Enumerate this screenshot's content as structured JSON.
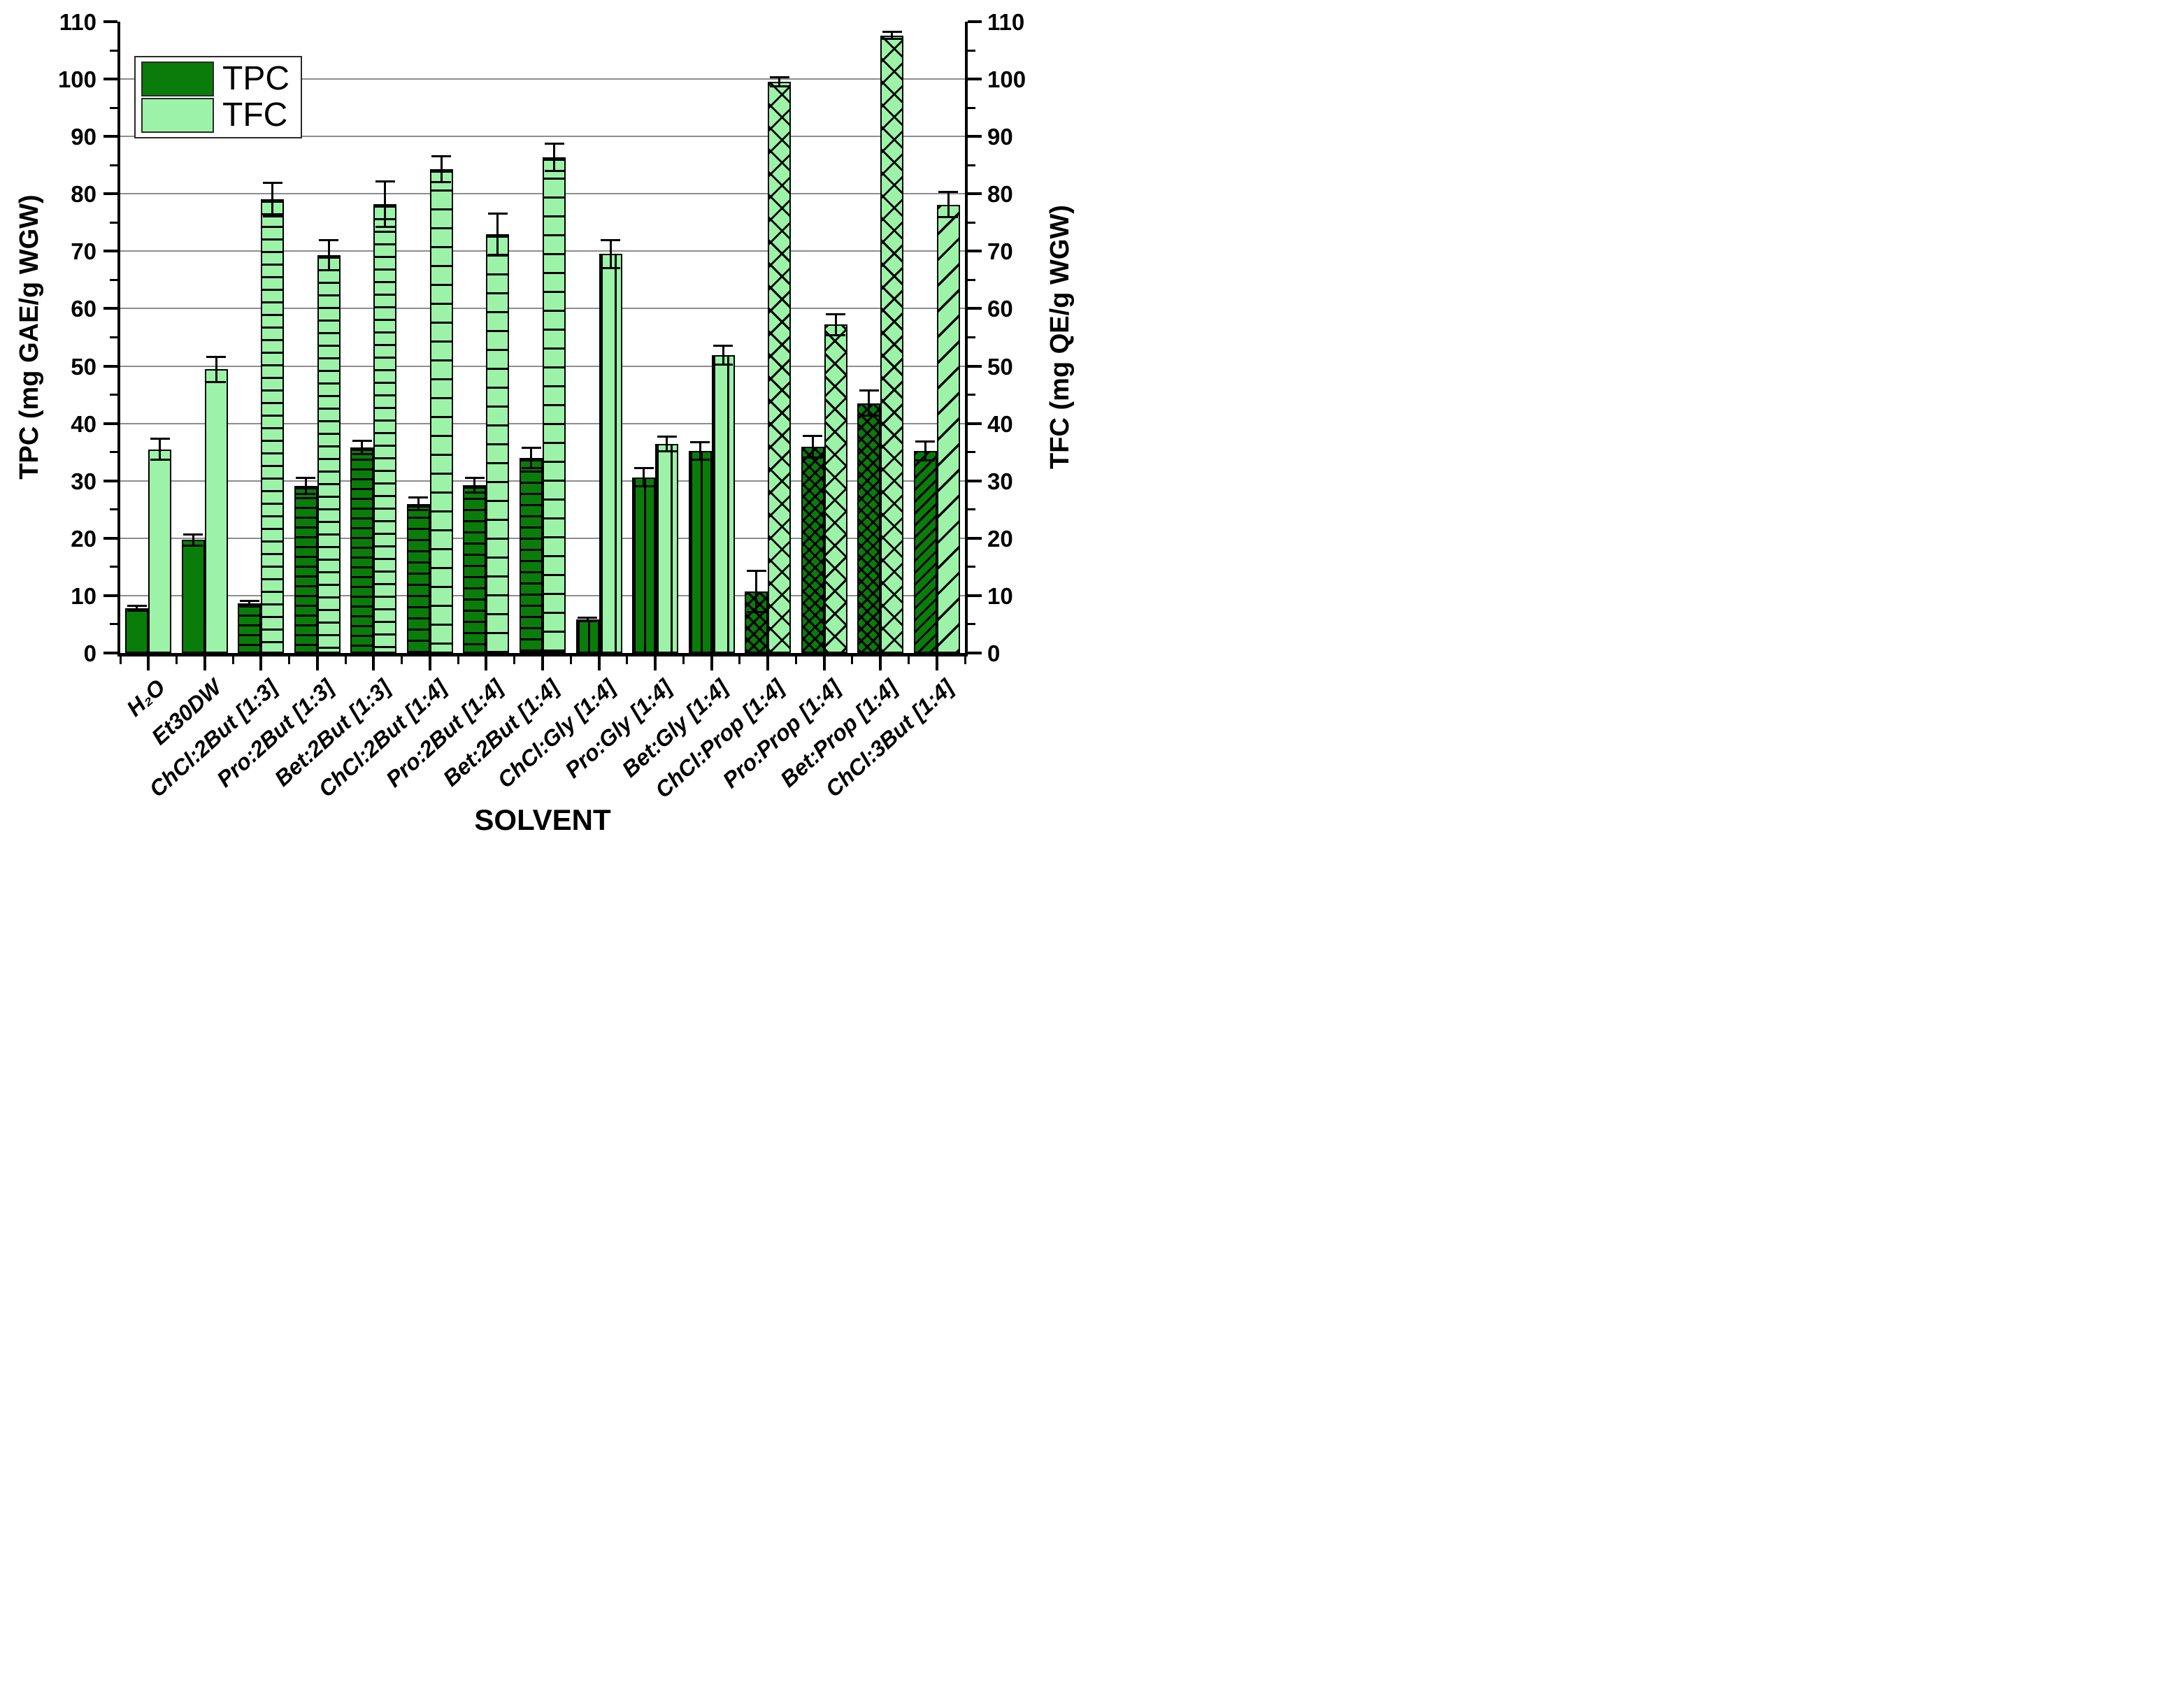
{
  "chart_data": {
    "type": "bar",
    "title": "",
    "xlabel": "SOLVENT",
    "ylabel_left": "TPC (mg GAE/g WGW)",
    "ylabel_right": "TFC (mg QE/g WGW)",
    "ylim": [
      0,
      110
    ],
    "ytick_major_step": 10,
    "ytick_minor_step": 5,
    "grid": true,
    "legend_position": "top-left",
    "categories": [
      "H₂O",
      "Et30DW",
      "ChCl:2But [1:3]",
      "Pro:2But [1:3]",
      "Bet:2But [1:3]",
      "ChCl:2But [1:4]",
      "Pro:2But [1:4]",
      "Bet:2But [1:4]",
      "ChCl:Gly [1:4]",
      "Pro:Gly [1:4]",
      "Bet:Gly [1:4]",
      "ChCl:Prop [1:4]",
      "Pro:Prop [1:4]",
      "Bet:Prop [1:4]",
      "ChCl:3But [1:4]"
    ],
    "hatches": [
      "solid",
      "solid",
      "hstripe",
      "hstripe",
      "hstripe",
      "hstripe2",
      "hstripe2",
      "hstripe2",
      "vstripe",
      "vstripe",
      "vstripe",
      "cross",
      "cross",
      "cross",
      "diag"
    ],
    "series": [
      {
        "name": "TPC",
        "axis": "left",
        "color": "#0a7c0a",
        "values": [
          7.8,
          19.7,
          8.6,
          29.1,
          35.8,
          26.0,
          29.2,
          34.0,
          5.8,
          30.6,
          35.2,
          10.7,
          35.9,
          43.5,
          35.2
        ],
        "errors": [
          0.4,
          1.0,
          0.5,
          1.4,
          1.2,
          1.1,
          1.3,
          1.8,
          0.3,
          1.6,
          1.5,
          3.6,
          1.9,
          2.2,
          1.6
        ]
      },
      {
        "name": "TFC",
        "axis": "right",
        "color": "#9cf3a8",
        "values": [
          35.5,
          49.4,
          79.0,
          69.3,
          78.2,
          84.3,
          73.0,
          86.4,
          69.5,
          36.4,
          51.9,
          99.5,
          57.2,
          107.6,
          78.1
        ],
        "errors": [
          1.8,
          2.2,
          2.9,
          2.6,
          4.0,
          2.3,
          3.6,
          2.4,
          2.4,
          1.3,
          1.6,
          0.8,
          1.8,
          0.6,
          2.2
        ]
      }
    ],
    "grid_color": "#8d8d8d",
    "bar_border_color": "#000000"
  }
}
